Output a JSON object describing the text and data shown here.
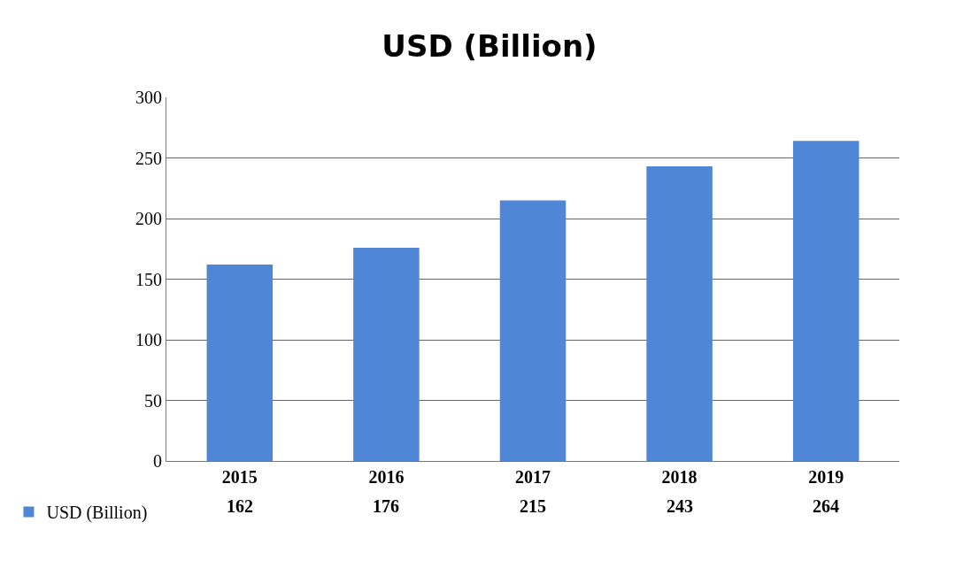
{
  "chart_data": {
    "type": "bar",
    "title": "USD (Billion)",
    "categories": [
      "2015",
      "2016",
      "2017",
      "2018",
      "2019"
    ],
    "series": [
      {
        "name": "USD (Billion)",
        "color": "#4f86d6",
        "values": [
          162,
          176,
          215,
          243,
          264
        ]
      }
    ],
    "ylim": [
      0,
      300
    ],
    "yticks": [
      0,
      50,
      100,
      150,
      200,
      250,
      300
    ],
    "grid": "y",
    "legend": "bottom left",
    "data_labels": true
  }
}
